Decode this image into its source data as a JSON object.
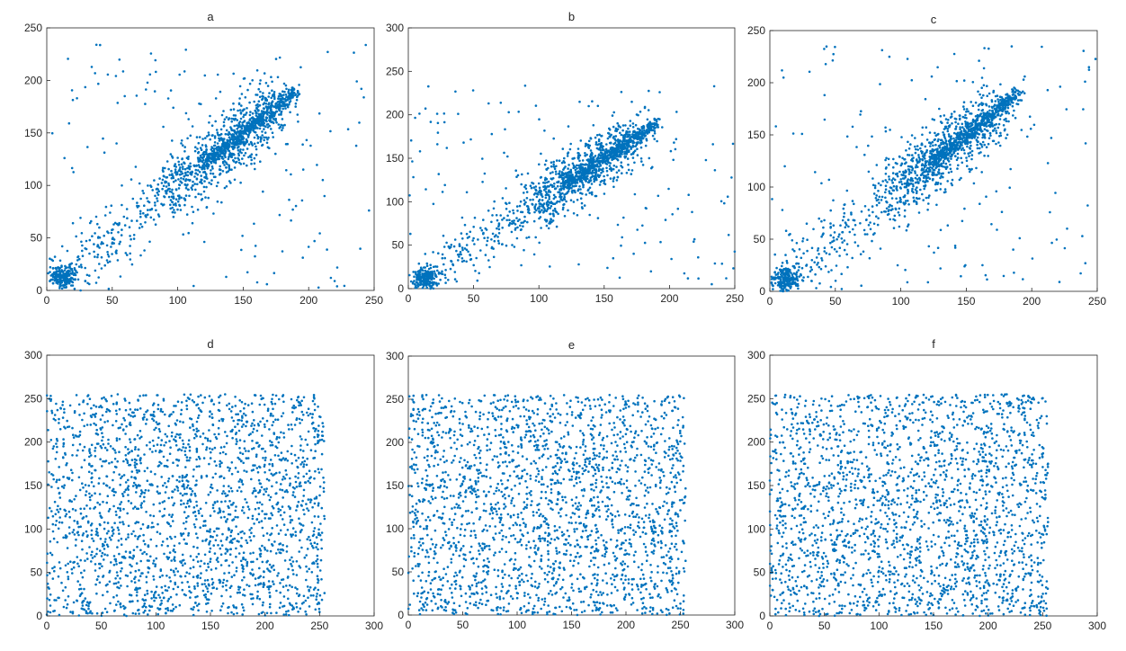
{
  "figure": {
    "point_color": "#0072BD",
    "axis_color": "#262626",
    "background": "#ffffff"
  },
  "chart_data": [
    {
      "id": "a",
      "type": "scatter",
      "title": "a",
      "xlabel": "",
      "ylabel": "",
      "xlim": [
        0,
        250
      ],
      "ylim": [
        0,
        250
      ],
      "xticks": [
        0,
        50,
        100,
        150,
        200,
        250
      ],
      "yticks": [
        0,
        50,
        100,
        150,
        200,
        250
      ],
      "grid": false,
      "correlated": true,
      "description_note": ""
    },
    {
      "id": "b",
      "type": "scatter",
      "title": "b",
      "xlabel": "",
      "ylabel": "",
      "xlim": [
        0,
        250
      ],
      "ylim": [
        0,
        300
      ],
      "xticks": [
        0,
        50,
        100,
        150,
        200,
        250
      ],
      "yticks": [
        0,
        50,
        100,
        150,
        200,
        250,
        300
      ],
      "grid": false,
      "correlated": true
    },
    {
      "id": "c",
      "type": "scatter",
      "title": "c",
      "xlabel": "",
      "ylabel": "",
      "xlim": [
        0,
        250
      ],
      "ylim": [
        0,
        250
      ],
      "xticks": [
        0,
        50,
        100,
        150,
        200,
        250
      ],
      "yticks": [
        0,
        50,
        100,
        150,
        200,
        250
      ],
      "grid": false,
      "correlated": true
    },
    {
      "id": "d",
      "type": "scatter",
      "title": "d",
      "xlabel": "",
      "ylabel": "",
      "xlim": [
        0,
        300
      ],
      "ylim": [
        0,
        300
      ],
      "xticks": [
        0,
        50,
        100,
        150,
        200,
        250,
        300
      ],
      "yticks": [
        0,
        50,
        100,
        150,
        200,
        250,
        300
      ],
      "grid": false,
      "correlated": false,
      "data_extent": [
        0,
        255
      ]
    },
    {
      "id": "e",
      "type": "scatter",
      "title": "e",
      "xlabel": "",
      "ylabel": "",
      "xlim": [
        0,
        300
      ],
      "ylim": [
        0,
        300
      ],
      "xticks": [
        0,
        50,
        100,
        150,
        200,
        250,
        300
      ],
      "yticks": [
        0,
        50,
        100,
        150,
        200,
        250,
        300
      ],
      "grid": false,
      "correlated": false,
      "data_extent": [
        0,
        255
      ]
    },
    {
      "id": "f",
      "type": "scatter",
      "title": "f",
      "xlabel": "",
      "ylabel": "",
      "xlim": [
        0,
        300
      ],
      "ylim": [
        0,
        300
      ],
      "xticks": [
        0,
        50,
        100,
        150,
        200,
        250,
        300
      ],
      "yticks": [
        0,
        50,
        100,
        150,
        200,
        250,
        300
      ],
      "grid": false,
      "correlated": false,
      "data_extent": [
        0,
        255
      ]
    }
  ]
}
